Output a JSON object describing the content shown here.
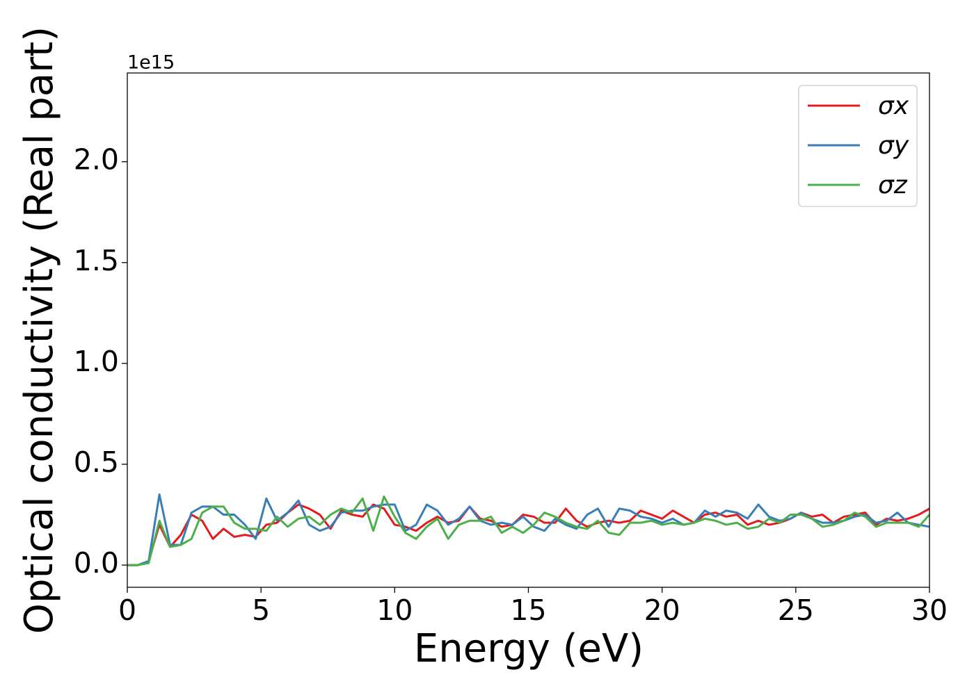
{
  "chart_data": {
    "type": "line",
    "xlabel": "Energy (eV)",
    "ylabel": "Optical conductivity (Real part)",
    "y_offset_text": "1e15",
    "x": [
      0,
      0.4,
      0.8,
      1.2,
      1.6,
      2,
      2.4,
      2.8,
      3.2,
      3.6,
      4,
      4.4,
      4.8,
      5.2,
      5.6,
      6,
      6.4,
      6.8,
      7.2,
      7.6,
      8,
      8.4,
      8.8,
      9.2,
      9.6,
      10,
      10.4,
      10.8,
      11.2,
      11.6,
      12,
      12.4,
      12.8,
      13.2,
      13.6,
      14,
      14.4,
      14.8,
      15.2,
      15.6,
      16,
      16.4,
      16.8,
      17.2,
      17.6,
      18,
      18.4,
      18.8,
      19.2,
      19.6,
      20,
      20.4,
      20.8,
      21.2,
      21.6,
      22,
      22.4,
      22.8,
      23.2,
      23.6,
      24,
      24.4,
      24.8,
      25.2,
      25.6,
      26,
      26.4,
      26.8,
      27.2,
      27.6,
      28,
      28.4,
      28.8,
      29.2,
      29.6,
      30
    ],
    "series": [
      {
        "name": "σx",
        "color": "#e41a1c",
        "values": [
          0,
          0,
          0.02,
          0.2,
          0.09,
          0.15,
          0.25,
          0.22,
          0.13,
          0.18,
          0.14,
          0.15,
          0.14,
          0.2,
          0.21,
          0.26,
          0.3,
          0.28,
          0.25,
          0.18,
          0.27,
          0.25,
          0.24,
          0.3,
          0.28,
          0.2,
          0.19,
          0.17,
          0.21,
          0.24,
          0.21,
          0.22,
          0.29,
          0.23,
          0.22,
          0.19,
          0.2,
          0.25,
          0.24,
          0.21,
          0.21,
          0.28,
          0.22,
          0.19,
          0.21,
          0.22,
          0.21,
          0.22,
          0.27,
          0.25,
          0.23,
          0.27,
          0.24,
          0.21,
          0.25,
          0.26,
          0.24,
          0.25,
          0.2,
          0.22,
          0.2,
          0.21,
          0.23,
          0.26,
          0.24,
          0.25,
          0.21,
          0.24,
          0.25,
          0.26,
          0.2,
          0.23,
          0.22,
          0.23,
          0.25,
          0.28
        ]
      },
      {
        "name": "σy",
        "color": "#377eb8",
        "values": [
          0,
          0,
          0.02,
          0.35,
          0.1,
          0.1,
          0.26,
          0.29,
          0.29,
          0.25,
          0.25,
          0.2,
          0.13,
          0.33,
          0.22,
          0.26,
          0.32,
          0.2,
          0.17,
          0.19,
          0.26,
          0.27,
          0.27,
          0.29,
          0.3,
          0.3,
          0.17,
          0.2,
          0.3,
          0.27,
          0.2,
          0.23,
          0.29,
          0.22,
          0.2,
          0.21,
          0.2,
          0.24,
          0.19,
          0.17,
          0.23,
          0.2,
          0.18,
          0.25,
          0.28,
          0.19,
          0.28,
          0.27,
          0.24,
          0.23,
          0.21,
          0.23,
          0.2,
          0.21,
          0.27,
          0.24,
          0.27,
          0.26,
          0.23,
          0.3,
          0.24,
          0.22,
          0.23,
          0.26,
          0.23,
          0.21,
          0.21,
          0.22,
          0.24,
          0.25,
          0.21,
          0.22,
          0.26,
          0.21,
          0.2,
          0.19
        ]
      },
      {
        "name": "σz",
        "color": "#4daf4a",
        "values": [
          0,
          0,
          0.01,
          0.22,
          0.09,
          0.1,
          0.13,
          0.26,
          0.29,
          0.29,
          0.21,
          0.18,
          0.18,
          0.17,
          0.24,
          0.19,
          0.23,
          0.24,
          0.2,
          0.25,
          0.28,
          0.26,
          0.33,
          0.17,
          0.34,
          0.24,
          0.16,
          0.13,
          0.19,
          0.23,
          0.13,
          0.2,
          0.22,
          0.22,
          0.24,
          0.16,
          0.19,
          0.16,
          0.2,
          0.26,
          0.24,
          0.21,
          0.19,
          0.18,
          0.22,
          0.16,
          0.15,
          0.21,
          0.21,
          0.22,
          0.2,
          0.21,
          0.2,
          0.21,
          0.23,
          0.22,
          0.2,
          0.21,
          0.18,
          0.19,
          0.23,
          0.21,
          0.25,
          0.25,
          0.23,
          0.19,
          0.2,
          0.22,
          0.26,
          0.24,
          0.19,
          0.21,
          0.21,
          0.21,
          0.19,
          0.25
        ]
      }
    ],
    "xlim": [
      0,
      30
    ],
    "xticks": [
      0,
      5,
      10,
      15,
      20,
      25,
      30
    ],
    "ylim": [
      -0.11,
      2.44
    ],
    "yticks": [
      {
        "value": 0,
        "label": "0.0"
      },
      {
        "value": 0.5,
        "label": "0.5"
      },
      {
        "value": 1,
        "label": "1.0"
      },
      {
        "value": 1.5,
        "label": "1.5"
      },
      {
        "value": 2,
        "label": "2.0"
      }
    ],
    "legend": "upper right",
    "grid": false
  }
}
